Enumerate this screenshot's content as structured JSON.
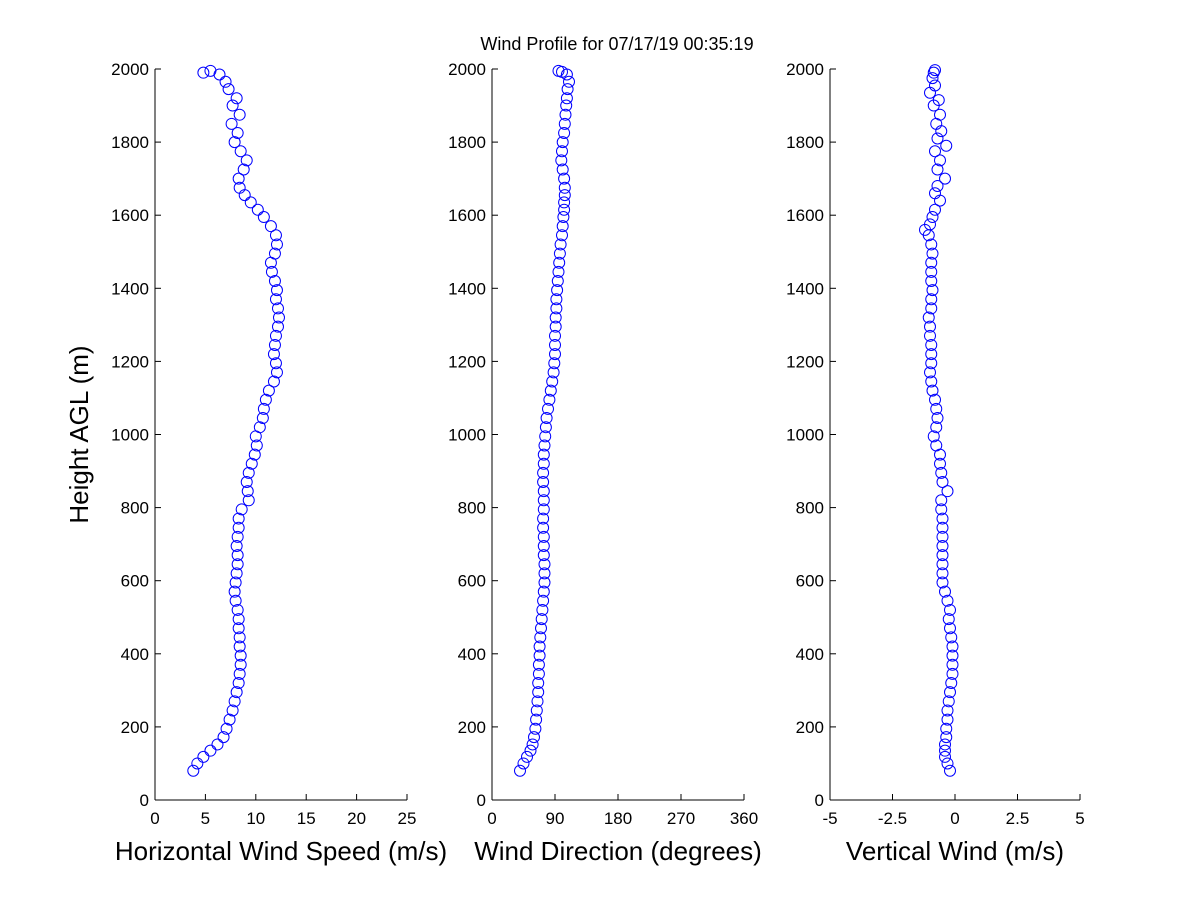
{
  "title": "Wind Profile for  07/17/19 00:35:19",
  "colors": {
    "marker": "#0000ff",
    "axis": "#000000",
    "background": "#ffffff"
  },
  "chart_data": [
    {
      "type": "scatter",
      "xlabel": "Horizontal Wind Speed (m/s)",
      "ylabel": "Height AGL (m)",
      "xlim": [
        0,
        25
      ],
      "ylim": [
        0,
        2000
      ],
      "xticks": [
        "0",
        "5",
        "10",
        "15",
        "20",
        "25"
      ],
      "yticks": [
        "0",
        "200",
        "400",
        "600",
        "800",
        "1000",
        "1200",
        "1400",
        "1600",
        "1800",
        "2000"
      ],
      "grid": false,
      "marker": "open-circle",
      "series": [
        {
          "points": [
            [
              3.8,
              80
            ],
            [
              4.2,
              100
            ],
            [
              4.8,
              118
            ],
            [
              5.5,
              135
            ],
            [
              6.2,
              152
            ],
            [
              6.8,
              172
            ],
            [
              7.1,
              195
            ],
            [
              7.4,
              220
            ],
            [
              7.7,
              245
            ],
            [
              7.9,
              270
            ],
            [
              8.1,
              295
            ],
            [
              8.3,
              320
            ],
            [
              8.4,
              345
            ],
            [
              8.5,
              370
            ],
            [
              8.5,
              395
            ],
            [
              8.4,
              420
            ],
            [
              8.4,
              445
            ],
            [
              8.3,
              470
            ],
            [
              8.3,
              495
            ],
            [
              8.2,
              520
            ],
            [
              8.0,
              545
            ],
            [
              7.9,
              570
            ],
            [
              8.0,
              595
            ],
            [
              8.1,
              620
            ],
            [
              8.2,
              645
            ],
            [
              8.2,
              670
            ],
            [
              8.1,
              695
            ],
            [
              8.2,
              720
            ],
            [
              8.3,
              745
            ],
            [
              8.3,
              770
            ],
            [
              8.6,
              795
            ],
            [
              9.3,
              820
            ],
            [
              9.2,
              845
            ],
            [
              9.1,
              870
            ],
            [
              9.3,
              895
            ],
            [
              9.6,
              920
            ],
            [
              9.9,
              945
            ],
            [
              10.1,
              970
            ],
            [
              10.0,
              995
            ],
            [
              10.4,
              1020
            ],
            [
              10.7,
              1045
            ],
            [
              10.8,
              1070
            ],
            [
              11.0,
              1095
            ],
            [
              11.3,
              1120
            ],
            [
              11.8,
              1145
            ],
            [
              12.1,
              1170
            ],
            [
              12.0,
              1195
            ],
            [
              11.8,
              1220
            ],
            [
              11.9,
              1245
            ],
            [
              12.0,
              1270
            ],
            [
              12.2,
              1295
            ],
            [
              12.3,
              1320
            ],
            [
              12.2,
              1345
            ],
            [
              12.0,
              1370
            ],
            [
              12.1,
              1395
            ],
            [
              11.9,
              1420
            ],
            [
              11.6,
              1445
            ],
            [
              11.5,
              1470
            ],
            [
              11.9,
              1495
            ],
            [
              12.1,
              1520
            ],
            [
              12.0,
              1545
            ],
            [
              11.5,
              1570
            ],
            [
              10.8,
              1595
            ],
            [
              10.2,
              1615
            ],
            [
              9.5,
              1635
            ],
            [
              8.9,
              1655
            ],
            [
              8.4,
              1675
            ],
            [
              8.3,
              1700
            ],
            [
              8.8,
              1725
            ],
            [
              9.1,
              1750
            ],
            [
              8.5,
              1775
            ],
            [
              7.9,
              1800
            ],
            [
              8.2,
              1825
            ],
            [
              7.6,
              1850
            ],
            [
              8.4,
              1875
            ],
            [
              7.7,
              1900
            ],
            [
              8.1,
              1920
            ],
            [
              7.3,
              1945
            ],
            [
              7.0,
              1965
            ],
            [
              6.4,
              1985
            ],
            [
              5.5,
              1995
            ],
            [
              4.8,
              1990
            ]
          ]
        }
      ]
    },
    {
      "type": "scatter",
      "xlabel": "Wind Direction (degrees)",
      "ylabel": "",
      "xlim": [
        0,
        360
      ],
      "ylim": [
        0,
        2000
      ],
      "xticks": [
        "0",
        "90",
        "180",
        "270",
        "360"
      ],
      "yticks": [
        "0",
        "200",
        "400",
        "600",
        "800",
        "1000",
        "1200",
        "1400",
        "1600",
        "1800",
        "2000"
      ],
      "grid": false,
      "marker": "open-circle",
      "series": [
        {
          "points": [
            [
              40,
              80
            ],
            [
              45,
              100
            ],
            [
              50,
              118
            ],
            [
              55,
              135
            ],
            [
              58,
              152
            ],
            [
              60,
              172
            ],
            [
              62,
              195
            ],
            [
              63,
              220
            ],
            [
              64,
              245
            ],
            [
              65,
              270
            ],
            [
              66,
              295
            ],
            [
              66,
              320
            ],
            [
              67,
              345
            ],
            [
              67,
              370
            ],
            [
              68,
              395
            ],
            [
              68,
              420
            ],
            [
              69,
              445
            ],
            [
              70,
              470
            ],
            [
              71,
              495
            ],
            [
              72,
              520
            ],
            [
              73,
              545
            ],
            [
              74,
              570
            ],
            [
              75,
              595
            ],
            [
              75,
              620
            ],
            [
              75,
              645
            ],
            [
              74,
              670
            ],
            [
              74,
              695
            ],
            [
              74,
              720
            ],
            [
              73,
              745
            ],
            [
              73,
              770
            ],
            [
              74,
              795
            ],
            [
              74,
              820
            ],
            [
              74,
              845
            ],
            [
              73,
              870
            ],
            [
              73,
              895
            ],
            [
              74,
              920
            ],
            [
              74,
              945
            ],
            [
              75,
              970
            ],
            [
              76,
              995
            ],
            [
              77,
              1020
            ],
            [
              78,
              1045
            ],
            [
              80,
              1070
            ],
            [
              82,
              1095
            ],
            [
              84,
              1120
            ],
            [
              86,
              1145
            ],
            [
              88,
              1170
            ],
            [
              89,
              1195
            ],
            [
              90,
              1220
            ],
            [
              90,
              1245
            ],
            [
              90,
              1270
            ],
            [
              91,
              1295
            ],
            [
              91,
              1320
            ],
            [
              92,
              1345
            ],
            [
              92,
              1370
            ],
            [
              93,
              1395
            ],
            [
              94,
              1420
            ],
            [
              95,
              1445
            ],
            [
              96,
              1470
            ],
            [
              97,
              1495
            ],
            [
              98,
              1520
            ],
            [
              100,
              1545
            ],
            [
              101,
              1570
            ],
            [
              102,
              1595
            ],
            [
              103,
              1615
            ],
            [
              103,
              1635
            ],
            [
              104,
              1655
            ],
            [
              104,
              1675
            ],
            [
              103,
              1700
            ],
            [
              101,
              1725
            ],
            [
              99,
              1750
            ],
            [
              100,
              1775
            ],
            [
              101,
              1800
            ],
            [
              103,
              1825
            ],
            [
              104,
              1850
            ],
            [
              105,
              1875
            ],
            [
              106,
              1900
            ],
            [
              107,
              1920
            ],
            [
              108,
              1945
            ],
            [
              110,
              1965
            ],
            [
              107,
              1985
            ],
            [
              95,
              1995
            ],
            [
              100,
              1992
            ]
          ]
        }
      ]
    },
    {
      "type": "scatter",
      "xlabel": "Vertical Wind (m/s)",
      "ylabel": "",
      "xlim": [
        -5,
        5
      ],
      "ylim": [
        0,
        2000
      ],
      "xticks": [
        "-5",
        "-2.5",
        "0",
        "2.5",
        "5"
      ],
      "yticks": [
        "0",
        "200",
        "400",
        "600",
        "800",
        "1000",
        "1200",
        "1400",
        "1600",
        "1800",
        "2000"
      ],
      "grid": false,
      "marker": "open-circle",
      "series": [
        {
          "points": [
            [
              -0.2,
              80
            ],
            [
              -0.3,
              100
            ],
            [
              -0.4,
              118
            ],
            [
              -0.4,
              135
            ],
            [
              -0.4,
              152
            ],
            [
              -0.35,
              172
            ],
            [
              -0.35,
              195
            ],
            [
              -0.3,
              220
            ],
            [
              -0.3,
              245
            ],
            [
              -0.25,
              270
            ],
            [
              -0.2,
              295
            ],
            [
              -0.15,
              320
            ],
            [
              -0.1,
              345
            ],
            [
              -0.1,
              370
            ],
            [
              -0.1,
              395
            ],
            [
              -0.1,
              420
            ],
            [
              -0.15,
              445
            ],
            [
              -0.2,
              470
            ],
            [
              -0.25,
              495
            ],
            [
              -0.2,
              520
            ],
            [
              -0.3,
              545
            ],
            [
              -0.4,
              570
            ],
            [
              -0.5,
              595
            ],
            [
              -0.5,
              620
            ],
            [
              -0.5,
              645
            ],
            [
              -0.5,
              670
            ],
            [
              -0.5,
              695
            ],
            [
              -0.5,
              720
            ],
            [
              -0.5,
              745
            ],
            [
              -0.5,
              770
            ],
            [
              -0.55,
              795
            ],
            [
              -0.55,
              820
            ],
            [
              -0.3,
              845
            ],
            [
              -0.5,
              870
            ],
            [
              -0.55,
              895
            ],
            [
              -0.6,
              920
            ],
            [
              -0.6,
              945
            ],
            [
              -0.75,
              970
            ],
            [
              -0.85,
              995
            ],
            [
              -0.75,
              1020
            ],
            [
              -0.7,
              1045
            ],
            [
              -0.75,
              1070
            ],
            [
              -0.8,
              1095
            ],
            [
              -0.9,
              1120
            ],
            [
              -0.95,
              1145
            ],
            [
              -1.0,
              1170
            ],
            [
              -0.95,
              1195
            ],
            [
              -0.95,
              1220
            ],
            [
              -0.95,
              1245
            ],
            [
              -1.0,
              1270
            ],
            [
              -1.0,
              1295
            ],
            [
              -1.05,
              1320
            ],
            [
              -0.95,
              1345
            ],
            [
              -0.95,
              1370
            ],
            [
              -0.9,
              1395
            ],
            [
              -0.95,
              1420
            ],
            [
              -0.95,
              1445
            ],
            [
              -0.95,
              1470
            ],
            [
              -0.9,
              1495
            ],
            [
              -0.95,
              1520
            ],
            [
              -1.05,
              1545
            ],
            [
              -1.2,
              1560
            ],
            [
              -1.0,
              1575
            ],
            [
              -0.9,
              1595
            ],
            [
              -0.8,
              1615
            ],
            [
              -0.6,
              1640
            ],
            [
              -0.8,
              1660
            ],
            [
              -0.7,
              1680
            ],
            [
              -0.4,
              1700
            ],
            [
              -0.7,
              1725
            ],
            [
              -0.6,
              1750
            ],
            [
              -0.8,
              1775
            ],
            [
              -0.35,
              1790
            ],
            [
              -0.7,
              1810
            ],
            [
              -0.55,
              1830
            ],
            [
              -0.75,
              1850
            ],
            [
              -0.6,
              1875
            ],
            [
              -0.85,
              1900
            ],
            [
              -0.65,
              1915
            ],
            [
              -1.0,
              1935
            ],
            [
              -0.8,
              1955
            ],
            [
              -0.9,
              1975
            ],
            [
              -0.85,
              1990
            ],
            [
              -0.8,
              1997
            ]
          ]
        }
      ]
    }
  ]
}
